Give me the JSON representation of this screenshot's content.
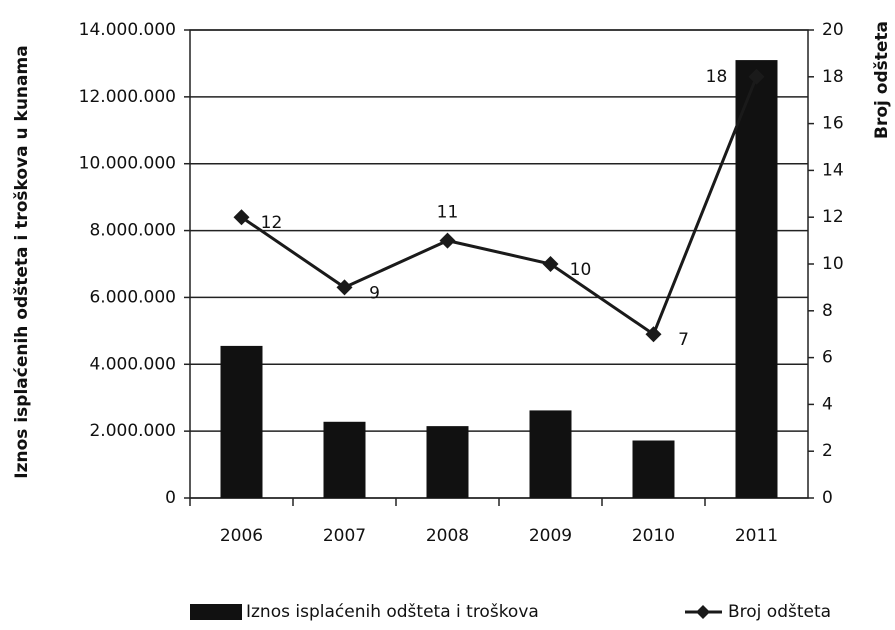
{
  "chart_data": {
    "type": "bar",
    "categories": [
      "2006",
      "2007",
      "2008",
      "2009",
      "2010",
      "2011"
    ],
    "series": [
      {
        "name": "Iznos isplaćenih odšteta i troškova",
        "color": "#111111",
        "values": [
          4550000,
          2280000,
          2150000,
          2620000,
          1720000,
          13100000
        ]
      },
      {
        "name": "Broj odšteta",
        "color": "#1a1a1a",
        "type": "line",
        "axis": "y2",
        "values": [
          12,
          9,
          11,
          10,
          7,
          18
        ]
      }
    ],
    "ylabel": "Iznos isplaćenih odšteta i troškova u kunama",
    "y2label": "Broj odšteta",
    "ylim": [
      0,
      14000000
    ],
    "yticks": [
      0,
      {
        "value": 2000000,
        "label": "2.000.000"
      },
      {
        "value": 4000000,
        "label": "4.000.000"
      },
      {
        "value": 6000000,
        "label": "6.000.000"
      },
      {
        "value": 8000000,
        "label": "8.000.000"
      },
      {
        "value": 10000000,
        "label": "10.000.000"
      },
      {
        "value": 12000000,
        "label": "12.000.000"
      },
      {
        "value": 14000000,
        "label": "14.000.000"
      }
    ],
    "y2lim": [
      0,
      20
    ],
    "y2ticks": [
      0,
      2,
      4,
      6,
      8,
      10,
      12,
      14,
      16,
      18,
      20
    ],
    "grid": true,
    "legend": "bottom"
  }
}
